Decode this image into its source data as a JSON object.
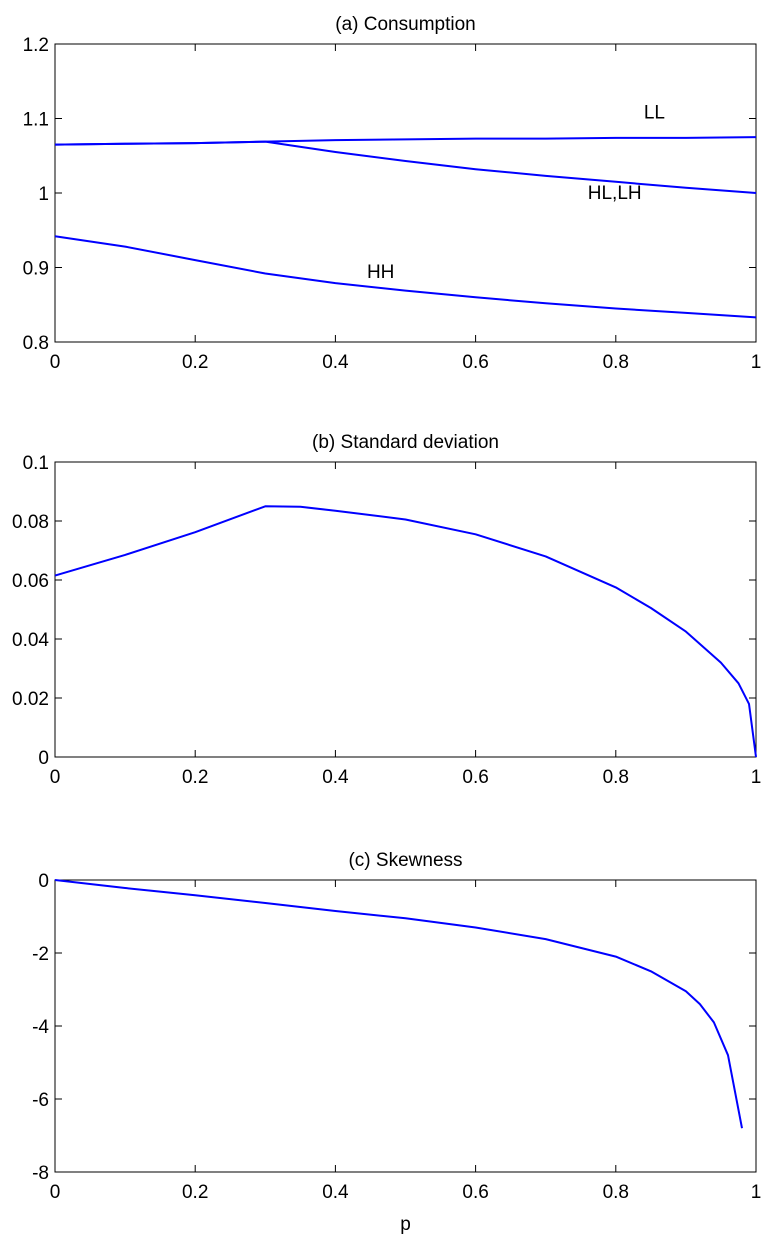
{
  "chart_data": [
    {
      "type": "line",
      "title": "(a) Consumption",
      "xlabel": "",
      "ylabel": "",
      "xlim": [
        0,
        1
      ],
      "ylim": [
        0.8,
        1.2
      ],
      "grid": false,
      "x_ticks": [
        "0",
        "0.2",
        "0.4",
        "0.6",
        "0.8",
        "1"
      ],
      "y_ticks": [
        "0.8",
        "0.9",
        "1",
        "1.1",
        "1.2"
      ],
      "color": "#0000ff",
      "series": [
        {
          "name": "LL",
          "x": [
            0,
            0.1,
            0.2,
            0.3,
            0.4,
            0.5,
            0.6,
            0.7,
            0.8,
            0.9,
            1.0
          ],
          "y": [
            1.065,
            1.066,
            1.067,
            1.069,
            1.071,
            1.072,
            1.073,
            1.073,
            1.074,
            1.074,
            1.075
          ]
        },
        {
          "name": "HL,LH",
          "x": [
            0,
            0.1,
            0.2,
            0.3,
            0.4,
            0.5,
            0.6,
            0.7,
            0.8,
            0.9,
            1.0
          ],
          "y": [
            1.065,
            1.066,
            1.067,
            1.069,
            1.055,
            1.043,
            1.032,
            1.023,
            1.015,
            1.007,
            1.0
          ]
        },
        {
          "name": "HH",
          "x": [
            0,
            0.1,
            0.2,
            0.3,
            0.4,
            0.5,
            0.6,
            0.7,
            0.8,
            0.9,
            1.0
          ],
          "y": [
            0.942,
            0.928,
            0.91,
            0.892,
            0.879,
            0.869,
            0.86,
            0.852,
            0.845,
            0.839,
            0.833
          ]
        }
      ],
      "annotations": [
        {
          "text": "LL",
          "x": 0.84,
          "y": 1.1
        },
        {
          "text": "HL,LH",
          "x": 0.76,
          "y": 0.992
        },
        {
          "text": "HH",
          "x": 0.445,
          "y": 0.886
        }
      ]
    },
    {
      "type": "line",
      "title": "(b) Standard deviation",
      "xlabel": "",
      "ylabel": "",
      "xlim": [
        0,
        1
      ],
      "ylim": [
        0,
        0.1
      ],
      "grid": false,
      "x_ticks": [
        "0",
        "0.2",
        "0.4",
        "0.6",
        "0.8",
        "1"
      ],
      "y_ticks": [
        "0",
        "0.02",
        "0.04",
        "0.06",
        "0.08",
        "0.1"
      ],
      "color": "#0000ff",
      "series": [
        {
          "x": [
            0,
            0.1,
            0.2,
            0.3,
            0.35,
            0.4,
            0.5,
            0.6,
            0.7,
            0.8,
            0.85,
            0.9,
            0.95,
            0.975,
            0.99,
            1.0
          ],
          "y": [
            0.0615,
            0.0685,
            0.0762,
            0.085,
            0.0848,
            0.0835,
            0.0805,
            0.0755,
            0.068,
            0.0575,
            0.0505,
            0.0425,
            0.032,
            0.025,
            0.018,
            0.0
          ]
        }
      ]
    },
    {
      "type": "line",
      "title": "(c) Skewness",
      "xlabel": "p",
      "ylabel": "",
      "xlim": [
        0,
        1
      ],
      "ylim": [
        -8,
        0
      ],
      "grid": false,
      "x_ticks": [
        "0",
        "0.2",
        "0.4",
        "0.6",
        "0.8",
        "1"
      ],
      "y_ticks": [
        "-8",
        "-6",
        "-4",
        "-2",
        "0"
      ],
      "color": "#0000ff",
      "series": [
        {
          "x": [
            0,
            0.1,
            0.2,
            0.3,
            0.4,
            0.5,
            0.6,
            0.7,
            0.8,
            0.85,
            0.9,
            0.92,
            0.94,
            0.96,
            0.98
          ],
          "y": [
            0.0,
            -0.22,
            -0.42,
            -0.63,
            -0.85,
            -1.05,
            -1.3,
            -1.62,
            -2.1,
            -2.5,
            -3.05,
            -3.4,
            -3.9,
            -4.8,
            -6.8
          ]
        }
      ]
    }
  ]
}
